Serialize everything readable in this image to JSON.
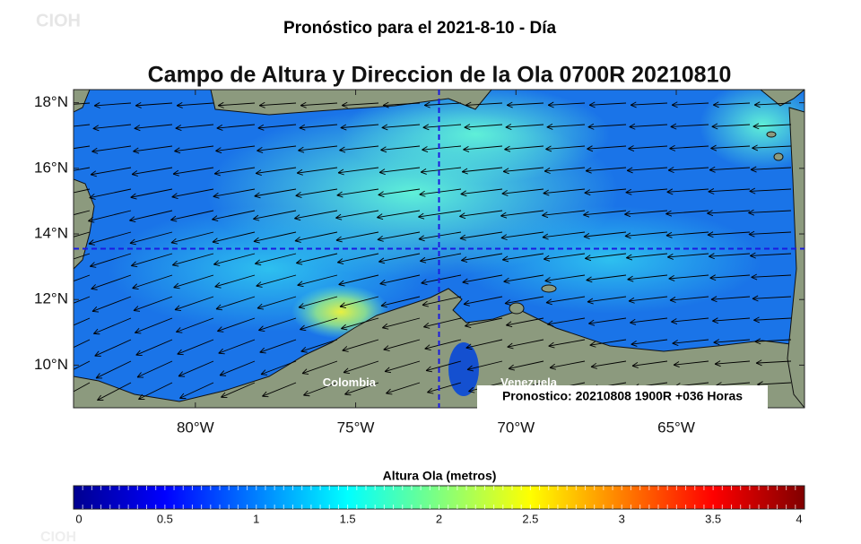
{
  "header": {
    "title": "Pronóstico para el 2021-8-10 - Día",
    "watermark": "CIOH"
  },
  "map": {
    "title": "Campo de Altura y Direccion de la Ola 0700R 20210810",
    "xlim": [
      -83.8,
      -61.0
    ],
    "ylim": [
      8.7,
      18.4
    ],
    "lat_ticks": [
      {
        "value": 18,
        "label": "18°N"
      },
      {
        "value": 16,
        "label": "16°N"
      },
      {
        "value": 14,
        "label": "14°N"
      },
      {
        "value": 12,
        "label": "12°N"
      },
      {
        "value": 10,
        "label": "10°N"
      }
    ],
    "lon_ticks": [
      {
        "value": -80,
        "label": "80°W"
      },
      {
        "value": -75,
        "label": "75°W"
      },
      {
        "value": -70,
        "label": "70°W"
      },
      {
        "value": -65,
        "label": "65°W"
      }
    ],
    "crosshair": {
      "lon": -72.4,
      "lat": 13.55
    },
    "places": [
      {
        "name": "Colombia",
        "lon": -75.2,
        "lat": 9.45
      },
      {
        "name": "Venezuela",
        "lon": -69.6,
        "lat": 9.45
      }
    ],
    "forecast_note": "Pronostico: 20210808 1900R +036 Horas"
  },
  "colorbar": {
    "title": "Altura Ola (metros)",
    "lim": [
      0,
      4
    ],
    "ticks": [
      0,
      0.5,
      1,
      1.5,
      2,
      2.5,
      3,
      3.5,
      4
    ]
  }
}
